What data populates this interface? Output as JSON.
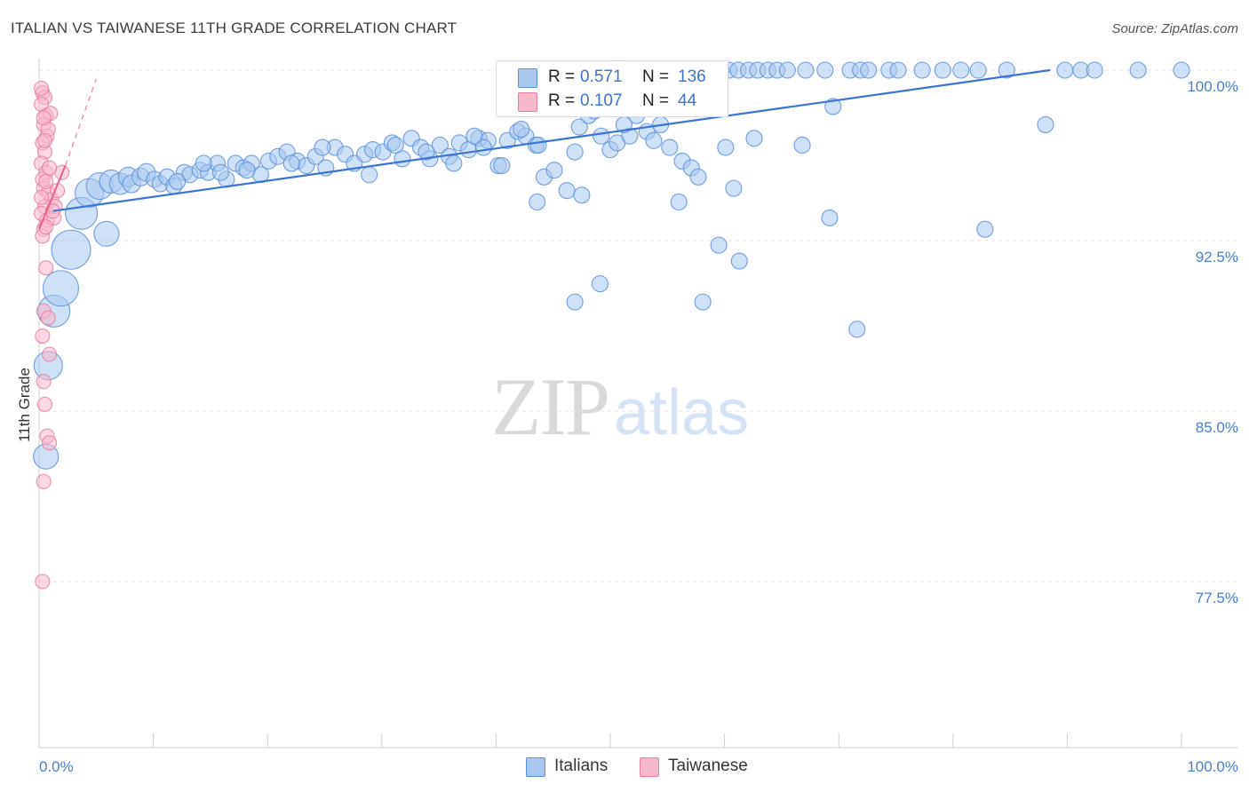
{
  "title": "ITALIAN VS TAIWANESE 11TH GRADE CORRELATION CHART",
  "source": "Source: ZipAtlas.com",
  "watermark": {
    "part1": "ZIP",
    "part2": "atlas"
  },
  "legend": {
    "rows": [
      {
        "r_label": "R =",
        "r_value": "0.571",
        "n_label": "N =",
        "n_value": "136"
      },
      {
        "r_label": "R =",
        "r_value": "0.107",
        "n_label": "N =",
        "n_value": "44"
      }
    ]
  },
  "bottom_legend": {
    "italians": "Italians",
    "taiwanese": "Taiwanese"
  },
  "colors": {
    "italians_fill": "#a8c8f0",
    "italians_stroke": "#5b8fd8",
    "italians_line": "#3a74d4",
    "taiwanese_fill": "#f7b8cc",
    "taiwanese_stroke": "#e87ea0",
    "taiwanese_line": "#e8608c",
    "tick_text": "#4a7fd0",
    "grid": "#e2e2e2"
  },
  "chart_data": {
    "type": "scatter",
    "title": "ITALIAN VS TAIWANESE 11TH GRADE CORRELATION CHART",
    "xlabel": "",
    "ylabel": "11th Grade",
    "xlim": [
      0,
      100
    ],
    "ylim": [
      70,
      101
    ],
    "y_ticks": [
      {
        "value": 100,
        "label": "100.0%"
      },
      {
        "value": 92.5,
        "label": "92.5%"
      },
      {
        "value": 85,
        "label": "85.0%"
      },
      {
        "value": 77.5,
        "label": "77.5%"
      }
    ],
    "x_tick_labels": {
      "min": "0.0%",
      "max": "100.0%"
    },
    "grid": true,
    "series": [
      {
        "name": "Italians",
        "trend": {
          "x": [
            1.2,
            88.5
          ],
          "y": [
            93.8,
            100.0
          ]
        },
        "points": [
          [
            0.6,
            83.0,
            14
          ],
          [
            0.8,
            87.0,
            16
          ],
          [
            1.3,
            89.4,
            18
          ],
          [
            1.9,
            90.4,
            20
          ],
          [
            2.8,
            92.1,
            22
          ],
          [
            3.7,
            93.7,
            18
          ],
          [
            4.4,
            94.6,
            16
          ],
          [
            5.3,
            94.9,
            15
          ],
          [
            6.3,
            95.1,
            13
          ],
          [
            7.1,
            95.0,
            12
          ],
          [
            7.8,
            95.3,
            11
          ],
          [
            5.9,
            92.8,
            14
          ],
          [
            8.1,
            95.0,
            10
          ],
          [
            8.9,
            95.3,
            10
          ],
          [
            9.4,
            95.5,
            10
          ],
          [
            10.1,
            95.2,
            9
          ],
          [
            10.6,
            95.0,
            9
          ],
          [
            11.2,
            95.3,
            9
          ],
          [
            11.8,
            94.9,
            9
          ],
          [
            12.7,
            95.5,
            9
          ],
          [
            13.2,
            95.4,
            9
          ],
          [
            14.1,
            95.6,
            9
          ],
          [
            14.8,
            95.5,
            9
          ],
          [
            15.6,
            95.9,
            9
          ],
          [
            16.4,
            95.2,
            9
          ],
          [
            17.2,
            95.9,
            9
          ],
          [
            17.9,
            95.7,
            9
          ],
          [
            18.6,
            95.9,
            9
          ],
          [
            19.4,
            95.4,
            9
          ],
          [
            20.1,
            96.0,
            9
          ],
          [
            20.9,
            96.2,
            9
          ],
          [
            21.7,
            96.4,
            9
          ],
          [
            22.6,
            96.0,
            9
          ],
          [
            23.4,
            95.8,
            9
          ],
          [
            24.2,
            96.2,
            9
          ],
          [
            25.1,
            95.7,
            9
          ],
          [
            25.9,
            96.6,
            9
          ],
          [
            26.8,
            96.3,
            9
          ],
          [
            27.6,
            95.9,
            9
          ],
          [
            28.5,
            96.3,
            9
          ],
          [
            29.2,
            96.5,
            9
          ],
          [
            30.1,
            96.4,
            9
          ],
          [
            30.9,
            96.8,
            9
          ],
          [
            31.8,
            96.1,
            9
          ],
          [
            32.6,
            97.0,
            9
          ],
          [
            33.4,
            96.6,
            9
          ],
          [
            34.2,
            96.1,
            9
          ],
          [
            35.1,
            96.7,
            9
          ],
          [
            35.9,
            96.2,
            9
          ],
          [
            36.8,
            96.8,
            9
          ],
          [
            37.6,
            96.5,
            9
          ],
          [
            38.5,
            97.0,
            9
          ],
          [
            39.3,
            96.9,
            9
          ],
          [
            40.2,
            95.8,
            9
          ],
          [
            41.0,
            96.9,
            9
          ],
          [
            41.9,
            97.3,
            9
          ],
          [
            42.6,
            97.1,
            9
          ],
          [
            43.5,
            96.7,
            9
          ],
          [
            44.2,
            95.3,
            9
          ],
          [
            12.1,
            95.1,
            9
          ],
          [
            14.4,
            95.9,
            9
          ],
          [
            15.9,
            95.5,
            9
          ],
          [
            18.2,
            95.6,
            9
          ],
          [
            22.1,
            95.9,
            9
          ],
          [
            24.8,
            96.6,
            9
          ],
          [
            28.9,
            95.4,
            9
          ],
          [
            31.2,
            96.7,
            9
          ],
          [
            33.9,
            96.4,
            9
          ],
          [
            36.3,
            95.9,
            9
          ],
          [
            38.9,
            96.6,
            9
          ],
          [
            40.5,
            95.8,
            9
          ],
          [
            42.2,
            97.4,
            9
          ],
          [
            43.7,
            96.7,
            9
          ],
          [
            45.1,
            95.6,
            9
          ],
          [
            46.2,
            94.7,
            9
          ],
          [
            46.9,
            96.4,
            9
          ],
          [
            47.3,
            97.5,
            9
          ],
          [
            48.1,
            98.0,
            9
          ],
          [
            48.6,
            98.2,
            9
          ],
          [
            49.2,
            97.1,
            9
          ],
          [
            50.0,
            96.5,
            9
          ],
          [
            50.6,
            96.8,
            9
          ],
          [
            51.7,
            97.1,
            9
          ],
          [
            52.3,
            98.0,
            9
          ],
          [
            53.2,
            97.3,
            9
          ],
          [
            53.8,
            96.9,
            9
          ],
          [
            54.4,
            97.6,
            9
          ],
          [
            55.2,
            96.6,
            9
          ],
          [
            56.3,
            96.0,
            9
          ],
          [
            57.1,
            95.7,
            9
          ],
          [
            57.7,
            95.3,
            9
          ],
          [
            47.5,
            94.5,
            9
          ],
          [
            56.0,
            94.2,
            9
          ],
          [
            60.1,
            96.6,
            9
          ],
          [
            60.8,
            94.8,
            9
          ],
          [
            66.8,
            96.7,
            9
          ],
          [
            88.1,
            97.6,
            9
          ],
          [
            53.6,
            100.0,
            9
          ],
          [
            55.1,
            100.0,
            9
          ],
          [
            55.8,
            100.0,
            9
          ],
          [
            56.9,
            100.0,
            9
          ],
          [
            57.7,
            100.0,
            9
          ],
          [
            58.8,
            100.0,
            9
          ],
          [
            59.7,
            100.0,
            9
          ],
          [
            60.4,
            100.0,
            9
          ],
          [
            61.2,
            100.0,
            9
          ],
          [
            62.1,
            100.0,
            9
          ],
          [
            62.9,
            100.0,
            9
          ],
          [
            63.8,
            100.0,
            9
          ],
          [
            64.6,
            100.0,
            9
          ],
          [
            65.5,
            100.0,
            9
          ],
          [
            67.1,
            100.0,
            9
          ],
          [
            68.8,
            100.0,
            9
          ],
          [
            71.0,
            100.0,
            9
          ],
          [
            71.9,
            100.0,
            9
          ],
          [
            72.6,
            100.0,
            9
          ],
          [
            74.4,
            100.0,
            9
          ],
          [
            75.2,
            100.0,
            9
          ],
          [
            77.3,
            100.0,
            9
          ],
          [
            79.1,
            100.0,
            9
          ],
          [
            80.7,
            100.0,
            9
          ],
          [
            82.2,
            100.0,
            9
          ],
          [
            84.7,
            100.0,
            9
          ],
          [
            89.8,
            100.0,
            9
          ],
          [
            91.2,
            100.0,
            9
          ],
          [
            92.4,
            100.0,
            9
          ],
          [
            96.2,
            100.0,
            9
          ],
          [
            100.0,
            100.0,
            9
          ],
          [
            43.6,
            94.2,
            9
          ],
          [
            69.2,
            93.5,
            9
          ],
          [
            82.8,
            93.0,
            9
          ],
          [
            59.5,
            92.3,
            9
          ],
          [
            49.1,
            90.6,
            9
          ],
          [
            46.9,
            89.8,
            9
          ],
          [
            58.1,
            89.8,
            9
          ],
          [
            61.3,
            91.6,
            9
          ],
          [
            71.6,
            88.6,
            9
          ],
          [
            52.9,
            98.7,
            9
          ],
          [
            59.0,
            98.9,
            9
          ],
          [
            38.1,
            97.1,
            9
          ],
          [
            62.6,
            97.0,
            9
          ],
          [
            69.5,
            98.4,
            9
          ],
          [
            50.1,
            98.3,
            9
          ],
          [
            51.2,
            97.6,
            9
          ]
        ]
      },
      {
        "name": "Taiwanese",
        "trend": {
          "x": [
            0.0,
            2.3
          ],
          "y": [
            93.0,
            95.8
          ]
        },
        "dashed_extension": {
          "x": [
            2.3,
            5.0
          ],
          "y": [
            95.8,
            99.6
          ]
        },
        "points": [
          [
            0.3,
            99.0,
            8
          ],
          [
            0.5,
            98.8,
            8
          ],
          [
            0.2,
            98.5,
            8
          ],
          [
            0.6,
            98.0,
            8
          ],
          [
            0.4,
            97.6,
            8
          ],
          [
            0.7,
            97.1,
            8
          ],
          [
            0.3,
            96.8,
            8
          ],
          [
            0.5,
            96.4,
            8
          ],
          [
            0.2,
            95.9,
            8
          ],
          [
            0.6,
            95.5,
            8
          ],
          [
            0.3,
            95.2,
            8
          ],
          [
            0.4,
            94.8,
            8
          ],
          [
            0.8,
            94.6,
            8
          ],
          [
            1.1,
            94.3,
            8
          ],
          [
            0.5,
            94.0,
            8
          ],
          [
            0.2,
            93.7,
            8
          ],
          [
            0.7,
            93.4,
            8
          ],
          [
            1.3,
            93.5,
            8
          ],
          [
            0.4,
            93.0,
            8
          ],
          [
            0.3,
            92.7,
            8
          ],
          [
            1.6,
            94.7,
            8
          ],
          [
            2.0,
            95.5,
            8
          ],
          [
            0.6,
            91.3,
            8
          ],
          [
            0.4,
            89.4,
            8
          ],
          [
            0.8,
            89.1,
            8
          ],
          [
            0.3,
            88.3,
            8
          ],
          [
            0.9,
            87.5,
            8
          ],
          [
            0.4,
            86.3,
            8
          ],
          [
            0.5,
            85.3,
            8
          ],
          [
            0.7,
            83.9,
            8
          ],
          [
            0.9,
            83.6,
            8
          ],
          [
            0.4,
            81.9,
            8
          ],
          [
            0.3,
            77.5,
            8
          ],
          [
            0.8,
            97.4,
            8
          ],
          [
            1.0,
            98.1,
            8
          ],
          [
            0.2,
            99.2,
            8
          ],
          [
            0.5,
            96.9,
            8
          ],
          [
            0.9,
            95.7,
            8
          ],
          [
            1.4,
            94.0,
            8
          ],
          [
            0.6,
            93.1,
            8
          ],
          [
            0.2,
            94.4,
            8
          ],
          [
            1.2,
            93.8,
            8
          ],
          [
            0.4,
            97.9,
            8
          ],
          [
            0.6,
            95.1,
            8
          ]
        ]
      }
    ]
  }
}
